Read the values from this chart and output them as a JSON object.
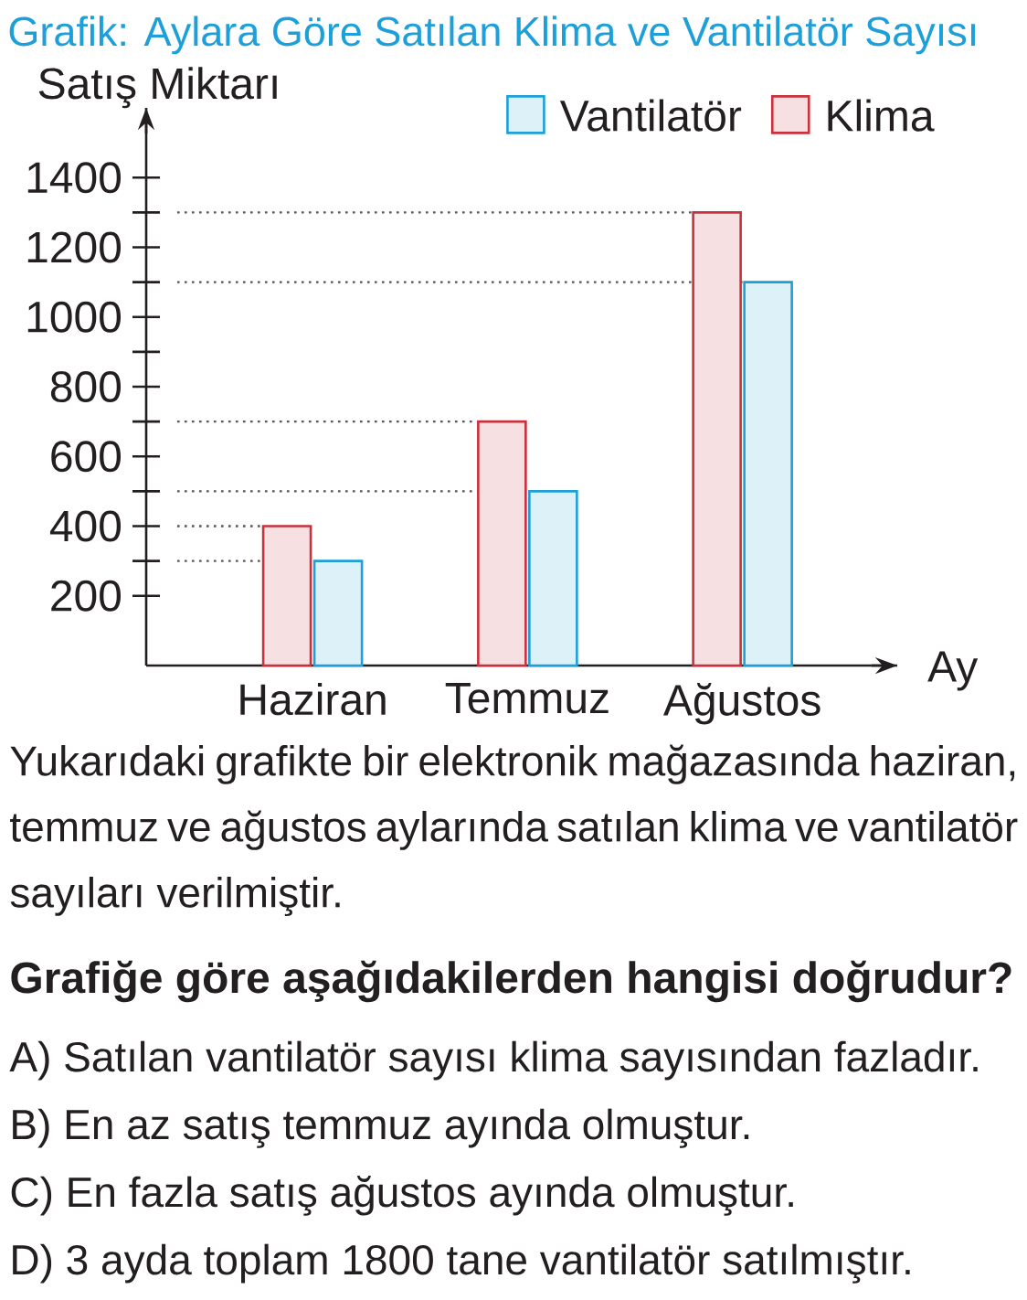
{
  "chart_data": {
    "type": "bar",
    "title": "Grafik: Aylara Göre Satılan Klima ve Vantilatör Sayısı",
    "ylabel": "Satış Miktarı",
    "xlabel": "Ay",
    "categories": [
      "Haziran",
      "Temmuz",
      "Ağustos"
    ],
    "series": [
      {
        "name": "Klima",
        "color": "#c8323c",
        "values": [
          400,
          700,
          1300
        ]
      },
      {
        "name": "Vantilatör",
        "color": "#1e9fd6",
        "values": [
          300,
          500,
          1100
        ]
      }
    ],
    "ylim": [
      0,
      1600
    ],
    "yticks": [
      200,
      {
        "value": 300,
        "label": null
      },
      400,
      {
        "value": 500,
        "label": null
      },
      600,
      {
        "value": 700,
        "label": null
      },
      800,
      {
        "value": 900,
        "label": null
      },
      1000,
      {
        "value": 1100,
        "label": null
      },
      1200,
      {
        "value": 1300,
        "label": null
      },
      1400
    ],
    "ref_lines": [
      {
        "axis": "y",
        "value": 1300,
        "line_style": "dotted",
        "color": "#555555"
      },
      {
        "axis": "y",
        "value": 1100,
        "line_style": "dotted",
        "color": "#555555"
      },
      {
        "axis": "y",
        "value": 700,
        "line_style": "dotted",
        "color": "#555555"
      },
      {
        "axis": "y",
        "value": 500,
        "line_style": "dotted",
        "color": "#555555"
      },
      {
        "axis": "y",
        "value": 400,
        "line_style": "dotted",
        "color": "#555555"
      },
      {
        "axis": "y",
        "value": 300,
        "line_style": "dotted",
        "color": "#555555"
      }
    ],
    "legend": "top right",
    "annotations": [
      "Yukarıdaki grafikte bir elektronik mağazasında haziran, temmuz ve ağustos aylarında satılan klima ve vantilatör sayıları verilmiştir.",
      "Grafiğe göre aşağıdakilerden hangisi doğrudur?",
      "A) Satılan vantilatör sayısı klima sayısından fazladır.",
      "B) En az satış temmuz ayında olmuştur.",
      "C) En fazla satış ağustos ayında olmuştur.",
      "D) 3 ayda toplam 1800 tane vantilatör satılmıştır."
    ]
  }
}
